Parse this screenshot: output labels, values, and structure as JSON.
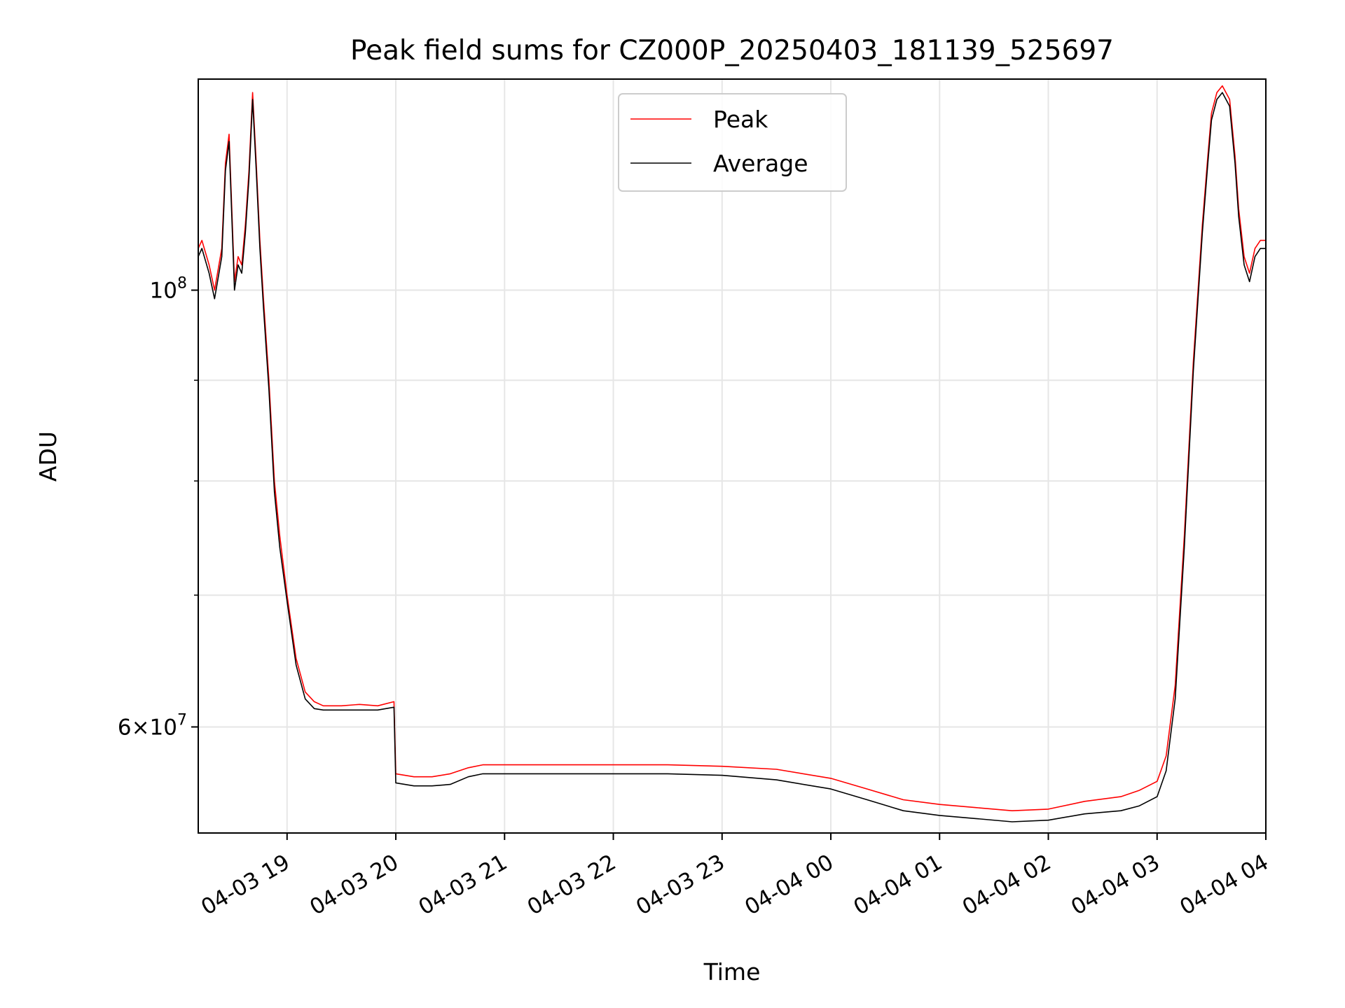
{
  "chart_data": {
    "type": "line",
    "title": "Peak field sums for CZ000P_20250403_181139_525697",
    "xlabel": "Time",
    "ylabel": "ADU",
    "y_scale": "log",
    "grid": true,
    "legend_position": "top-center",
    "x_range": [
      "2025-04-03 18:11",
      "2025-04-04 04:00"
    ],
    "y_range": [
      53000000,
      128000000
    ],
    "x_ticks": [
      "04-03 19",
      "04-03 20",
      "04-03 21",
      "04-03 22",
      "04-03 23",
      "04-04 00",
      "04-04 01",
      "04-04 02",
      "04-04 03",
      "04-04 04"
    ],
    "y_ticks": [
      {
        "value": 100000000,
        "base": "10",
        "exp": "8"
      },
      {
        "value": 60000000,
        "mant": "6",
        "base": "10",
        "exp": "7"
      }
    ],
    "y_minor_ticks": [
      70000000,
      80000000,
      90000000
    ],
    "series": [
      {
        "name": "Peak",
        "color": "#ff0000",
        "x": [
          "2025-04-03 18:11",
          "2025-04-03 18:13",
          "2025-04-03 18:17",
          "2025-04-03 18:20",
          "2025-04-03 18:24",
          "2025-04-03 18:26",
          "2025-04-03 18:28",
          "2025-04-03 18:31",
          "2025-04-03 18:33",
          "2025-04-03 18:35",
          "2025-04-03 18:37",
          "2025-04-03 18:39",
          "2025-04-03 18:41",
          "2025-04-03 18:43",
          "2025-04-03 18:45",
          "2025-04-03 18:47",
          "2025-04-03 18:50",
          "2025-04-03 18:53",
          "2025-04-03 18:56",
          "2025-04-03 19:00",
          "2025-04-03 19:05",
          "2025-04-03 19:10",
          "2025-04-03 19:15",
          "2025-04-03 19:20",
          "2025-04-03 19:25",
          "2025-04-03 19:30",
          "2025-04-03 19:40",
          "2025-04-03 19:50",
          "2025-04-03 19:59",
          "2025-04-03 20:00",
          "2025-04-03 20:10",
          "2025-04-03 20:20",
          "2025-04-03 20:30",
          "2025-04-03 20:40",
          "2025-04-03 20:48",
          "2025-04-03 21:00",
          "2025-04-03 21:30",
          "2025-04-03 22:00",
          "2025-04-03 22:30",
          "2025-04-03 23:00",
          "2025-04-03 23:30",
          "2025-04-04 00:00",
          "2025-04-04 00:20",
          "2025-04-04 00:40",
          "2025-04-04 01:00",
          "2025-04-04 01:20",
          "2025-04-04 01:40",
          "2025-04-04 02:00",
          "2025-04-04 02:20",
          "2025-04-04 02:40",
          "2025-04-04 02:50",
          "2025-04-04 03:00",
          "2025-04-04 03:05",
          "2025-04-04 03:10",
          "2025-04-04 03:15",
          "2025-04-04 03:20",
          "2025-04-04 03:25",
          "2025-04-04 03:28",
          "2025-04-04 03:30",
          "2025-04-04 03:33",
          "2025-04-04 03:36",
          "2025-04-04 03:40",
          "2025-04-04 03:43",
          "2025-04-04 03:45",
          "2025-04-04 03:48",
          "2025-04-04 03:51",
          "2025-04-04 03:54",
          "2025-04-04 03:57",
          "2025-04-04 04:00"
        ],
        "y": [
          105000000,
          106000000,
          103000000,
          100000000,
          105000000,
          116000000,
          120000000,
          101000000,
          104000000,
          103000000,
          108000000,
          115000000,
          126000000,
          116000000,
          106000000,
          99000000,
          90000000,
          80000000,
          75000000,
          70000000,
          65000000,
          62500000,
          61800000,
          61500000,
          61500000,
          61500000,
          61600000,
          61500000,
          61800000,
          56800000,
          56600000,
          56600000,
          56800000,
          57200000,
          57400000,
          57400000,
          57400000,
          57400000,
          57400000,
          57300000,
          57100000,
          56500000,
          55800000,
          55100000,
          54800000,
          54600000,
          54400000,
          54500000,
          55000000,
          55300000,
          55700000,
          56300000,
          58000000,
          63000000,
          75000000,
          92000000,
          108000000,
          117000000,
          123000000,
          126000000,
          127000000,
          125000000,
          117000000,
          110000000,
          104000000,
          102000000,
          105000000,
          106000000,
          106000000
        ]
      },
      {
        "name": "Average",
        "color": "#000000",
        "x": [
          "2025-04-03 18:11",
          "2025-04-03 18:13",
          "2025-04-03 18:17",
          "2025-04-03 18:20",
          "2025-04-03 18:24",
          "2025-04-03 18:26",
          "2025-04-03 18:28",
          "2025-04-03 18:31",
          "2025-04-03 18:33",
          "2025-04-03 18:35",
          "2025-04-03 18:37",
          "2025-04-03 18:39",
          "2025-04-03 18:41",
          "2025-04-03 18:43",
          "2025-04-03 18:45",
          "2025-04-03 18:47",
          "2025-04-03 18:50",
          "2025-04-03 18:53",
          "2025-04-03 18:56",
          "2025-04-03 19:00",
          "2025-04-03 19:05",
          "2025-04-03 19:10",
          "2025-04-03 19:15",
          "2025-04-03 19:20",
          "2025-04-03 19:25",
          "2025-04-03 19:30",
          "2025-04-03 19:40",
          "2025-04-03 19:50",
          "2025-04-03 19:59",
          "2025-04-03 20:00",
          "2025-04-03 20:10",
          "2025-04-03 20:20",
          "2025-04-03 20:30",
          "2025-04-03 20:40",
          "2025-04-03 20:48",
          "2025-04-03 21:00",
          "2025-04-03 21:30",
          "2025-04-03 22:00",
          "2025-04-03 22:30",
          "2025-04-03 23:00",
          "2025-04-03 23:30",
          "2025-04-04 00:00",
          "2025-04-04 00:20",
          "2025-04-04 00:40",
          "2025-04-04 01:00",
          "2025-04-04 01:20",
          "2025-04-04 01:40",
          "2025-04-04 02:00",
          "2025-04-04 02:20",
          "2025-04-04 02:40",
          "2025-04-04 02:50",
          "2025-04-04 03:00",
          "2025-04-04 03:05",
          "2025-04-04 03:10",
          "2025-04-04 03:15",
          "2025-04-04 03:20",
          "2025-04-04 03:25",
          "2025-04-04 03:28",
          "2025-04-04 03:30",
          "2025-04-04 03:33",
          "2025-04-04 03:36",
          "2025-04-04 03:40",
          "2025-04-04 03:43",
          "2025-04-04 03:45",
          "2025-04-04 03:48",
          "2025-04-04 03:51",
          "2025-04-04 03:54",
          "2025-04-04 03:57",
          "2025-04-04 04:00"
        ],
        "y": [
          104000000,
          105000000,
          102000000,
          99000000,
          104000000,
          115000000,
          119000000,
          100000000,
          103000000,
          102000000,
          107000000,
          114000000,
          125000000,
          115000000,
          105000000,
          98000000,
          89000000,
          79000000,
          74000000,
          69500000,
          64500000,
          62000000,
          61300000,
          61200000,
          61200000,
          61200000,
          61200000,
          61200000,
          61400000,
          56200000,
          56000000,
          56000000,
          56100000,
          56600000,
          56800000,
          56800000,
          56800000,
          56800000,
          56800000,
          56700000,
          56400000,
          55800000,
          55100000,
          54400000,
          54100000,
          53900000,
          53700000,
          53800000,
          54200000,
          54400000,
          54700000,
          55300000,
          57000000,
          62000000,
          74000000,
          91000000,
          107000000,
          116000000,
          122000000,
          125000000,
          126000000,
          124000000,
          116000000,
          109000000,
          103000000,
          101000000,
          104000000,
          105000000,
          105000000
        ]
      }
    ]
  }
}
